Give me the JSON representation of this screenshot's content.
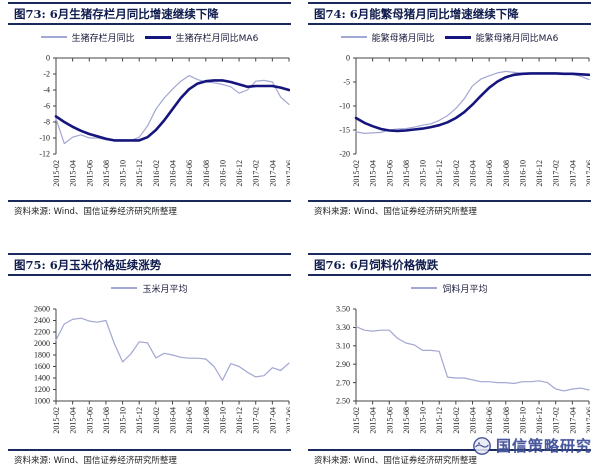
{
  "colors": {
    "thin_line": "#a2a7d3",
    "thick_line": "#15157d",
    "rule": "#1b2a5e",
    "axis": "#444444",
    "watermark": "#2a3a8c"
  },
  "source_note": "资料来源: Wind、国信证券经济研究所整理",
  "watermark_text": "国信策略研究",
  "x_tick_labels": [
    "2015-02",
    "2015-04",
    "2015-06",
    "2015-08",
    "2015-10",
    "2015-12",
    "2016-02",
    "2016-04",
    "2016-06",
    "2016-08",
    "2016-10",
    "2016-12",
    "2017-02",
    "2017-04",
    "2017-06"
  ],
  "chart_data": [
    {
      "id": "fig73",
      "type": "line",
      "title": "图73: 6月生猪存栏月同比增速继续下降",
      "ylim": [
        -12,
        0
      ],
      "y_tick_labels": [
        "0",
        "-2",
        "-4",
        "-6",
        "-8",
        "-10",
        "-12"
      ],
      "x_axis_position": "top",
      "legend_position": "top",
      "grid": false,
      "series": [
        {
          "name": "生猪存栏月同比",
          "style": "thin",
          "values": [
            -7.6,
            -10.7,
            -9.9,
            -9.6,
            -10.0,
            -10.0,
            -10.2,
            -10.3,
            -10.4,
            -10.3,
            -9.9,
            -8.5,
            -6.4,
            -5.0,
            -3.9,
            -2.9,
            -2.2,
            -2.7,
            -3.0,
            -3.1,
            -3.3,
            -3.6,
            -4.4,
            -4.0,
            -2.9,
            -2.8,
            -3.0,
            -4.9,
            -5.8
          ]
        },
        {
          "name": "生猪存栏月同比MA6",
          "style": "thick",
          "values": [
            -7.3,
            -8.0,
            -8.6,
            -9.1,
            -9.5,
            -9.8,
            -10.1,
            -10.3,
            -10.3,
            -10.3,
            -10.3,
            -9.9,
            -9.0,
            -7.8,
            -6.4,
            -5.0,
            -3.9,
            -3.2,
            -2.9,
            -2.8,
            -2.8,
            -3.0,
            -3.3,
            -3.6,
            -3.5,
            -3.5,
            -3.5,
            -3.7,
            -4.0
          ]
        }
      ]
    },
    {
      "id": "fig74",
      "type": "line",
      "title": "图74: 6月能繁母猪月同比增速继续下降",
      "ylim": [
        -20,
        0
      ],
      "y_tick_labels": [
        "0",
        "-5",
        "-10",
        "-15",
        "-20"
      ],
      "x_axis_position": "top",
      "legend_position": "top",
      "grid": false,
      "series": [
        {
          "name": "能繁母猪月同比",
          "style": "thin",
          "values": [
            -15.4,
            -15.7,
            -15.6,
            -15.5,
            -15.0,
            -14.8,
            -14.7,
            -14.4,
            -14.0,
            -13.7,
            -13.0,
            -12.0,
            -10.5,
            -8.5,
            -5.8,
            -4.4,
            -3.7,
            -3.1,
            -2.8,
            -3.0,
            -3.2,
            -3.3,
            -3.3,
            -3.3,
            -3.3,
            -3.4,
            -3.4,
            -3.8,
            -4.5
          ]
        },
        {
          "name": "能繁母猪月同比MA6",
          "style": "thick",
          "values": [
            -12.5,
            -13.5,
            -14.2,
            -14.8,
            -15.1,
            -15.2,
            -15.1,
            -14.9,
            -14.7,
            -14.4,
            -14.0,
            -13.4,
            -12.5,
            -11.3,
            -9.7,
            -7.9,
            -6.2,
            -4.9,
            -4.0,
            -3.5,
            -3.3,
            -3.2,
            -3.2,
            -3.2,
            -3.2,
            -3.3,
            -3.3,
            -3.4,
            -3.5
          ]
        }
      ]
    },
    {
      "id": "fig75",
      "type": "line",
      "title": "图75: 6月玉米价格延续涨势",
      "ylim": [
        1000,
        2600
      ],
      "y_tick_labels": [
        "2600",
        "2400",
        "2200",
        "2000",
        "1800",
        "1600",
        "1400",
        "1200",
        "1000"
      ],
      "x_axis_position": "bottom",
      "legend_position": "top",
      "grid": false,
      "series": [
        {
          "name": "玉米月平均",
          "style": "thin",
          "values": [
            2060,
            2340,
            2420,
            2440,
            2390,
            2370,
            2400,
            2000,
            1680,
            1820,
            2030,
            2010,
            1750,
            1830,
            1800,
            1760,
            1745,
            1745,
            1730,
            1600,
            1360,
            1650,
            1600,
            1500,
            1420,
            1440,
            1580,
            1530,
            1660
          ]
        }
      ]
    },
    {
      "id": "fig76",
      "type": "line",
      "title": "图76: 6月饲料价格微跌",
      "ylim": [
        2.5,
        3.5
      ],
      "y_tick_labels": [
        "3.50",
        "3.30",
        "3.10",
        "2.90",
        "2.70",
        "2.50"
      ],
      "x_axis_position": "bottom",
      "legend_position": "top",
      "grid": false,
      "series": [
        {
          "name": "饲料月平均",
          "style": "thin",
          "values": [
            3.31,
            3.27,
            3.26,
            3.27,
            3.27,
            3.18,
            3.13,
            3.11,
            3.05,
            3.05,
            3.04,
            2.76,
            2.75,
            2.75,
            2.73,
            2.71,
            2.71,
            2.7,
            2.7,
            2.69,
            2.71,
            2.71,
            2.72,
            2.7,
            2.63,
            2.61,
            2.63,
            2.64,
            2.62
          ]
        }
      ]
    }
  ]
}
